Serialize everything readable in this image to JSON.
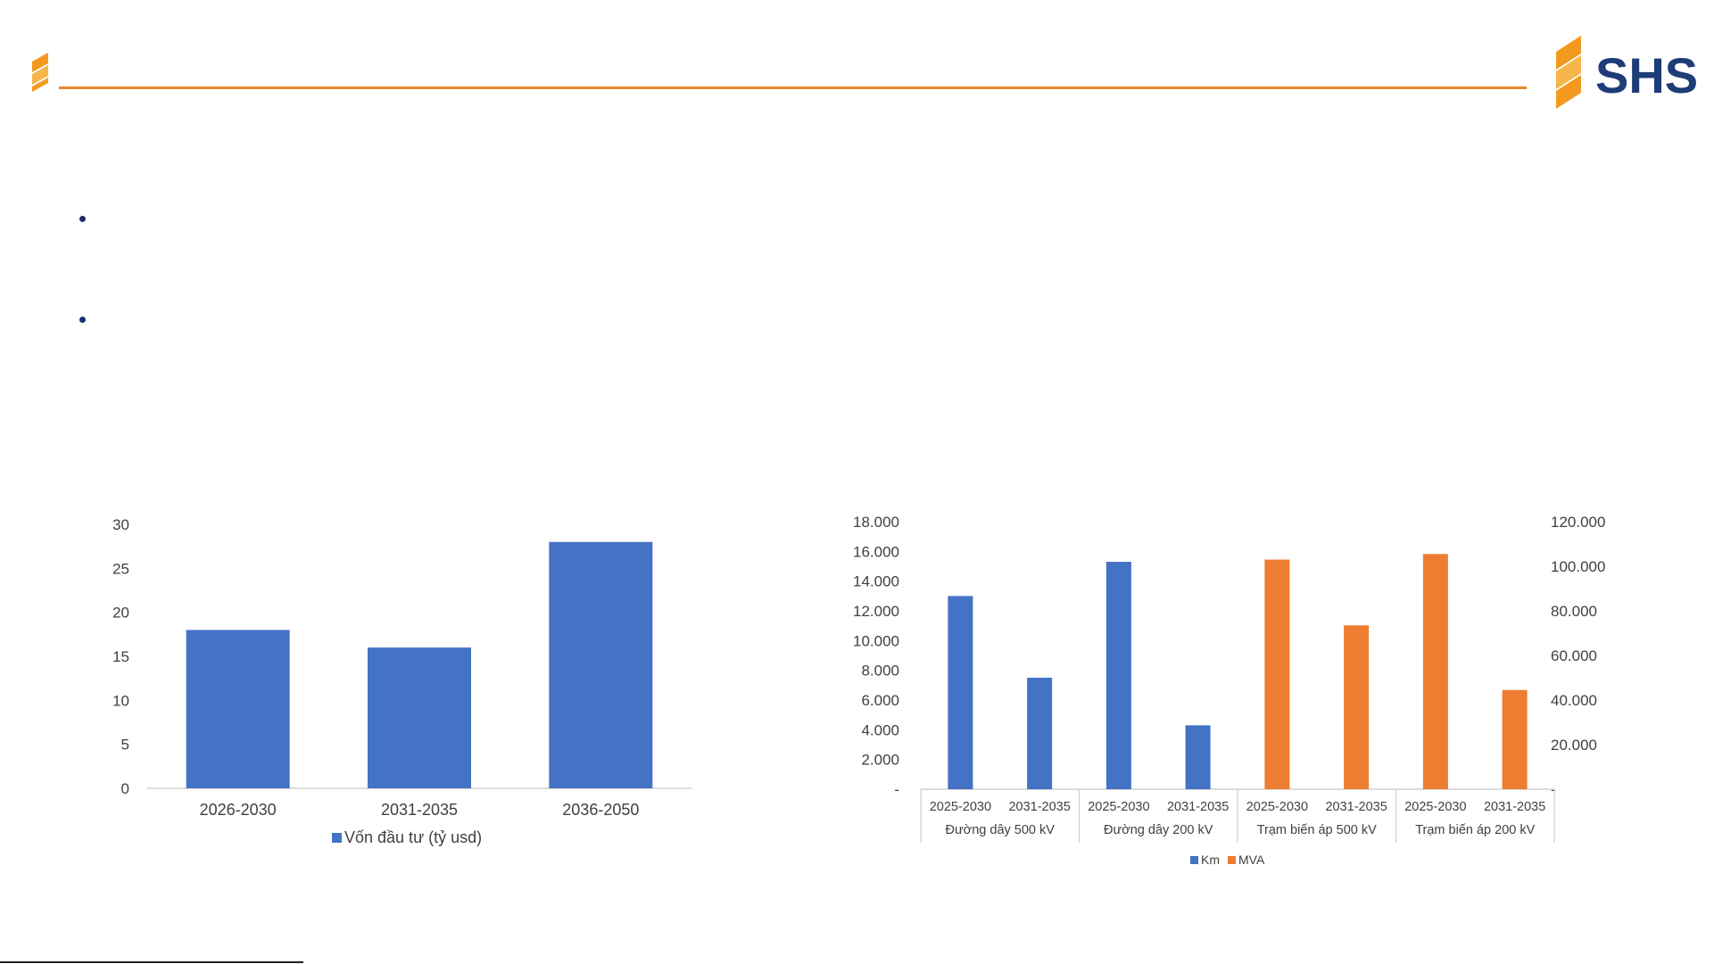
{
  "brand": {
    "name": "SHS",
    "colors": {
      "orange": "#f39a1e",
      "navy": "#1d3c78"
    }
  },
  "chart_data": [
    {
      "type": "bar",
      "categories": [
        "2026-2030",
        "2031-2035",
        "2036-2050"
      ],
      "series": [
        {
          "name": "Vốn đầu tư (tỷ usd)",
          "color": "#4472c4",
          "values": [
            18,
            16,
            28
          ]
        }
      ],
      "y_ticks": [
        "0",
        "5",
        "10",
        "15",
        "20",
        "25",
        "30"
      ],
      "ylim": [
        0,
        30
      ],
      "grid": false,
      "legend_position": "bottom"
    },
    {
      "type": "bar",
      "categories": [
        "2025-2030",
        "2031-2035",
        "2025-2030",
        "2031-2035",
        "2025-2030",
        "2031-2035",
        "2025-2030",
        "2031-2035"
      ],
      "groups": [
        {
          "label": "Đường dây 500 kV",
          "span": 2
        },
        {
          "label": "Đường dây 200 kV",
          "span": 2
        },
        {
          "label": "Trạm biến áp 500 kV",
          "span": 2
        },
        {
          "label": "Trạm biến áp 200 kV",
          "span": 2
        }
      ],
      "series": [
        {
          "name": "Km",
          "axis": "left",
          "color": "#4472c4",
          "values": [
            13000,
            7500,
            15300,
            4300,
            null,
            null,
            null,
            null
          ]
        },
        {
          "name": "MVA",
          "axis": "right",
          "color": "#ed7d31",
          "values": [
            null,
            null,
            null,
            null,
            103000,
            73500,
            105500,
            44500
          ]
        }
      ],
      "y_left_ticks": [
        "-",
        "2.000",
        "4.000",
        "6.000",
        "8.000",
        "10.000",
        "12.000",
        "14.000",
        "16.000",
        "18.000"
      ],
      "y_right_ticks": [
        "-",
        "20.000",
        "40.000",
        "60.000",
        "80.000",
        "100.000",
        "120.000"
      ],
      "ylim_left": [
        0,
        18000
      ],
      "ylim_right": [
        0,
        120000
      ],
      "grid": false,
      "legend_position": "bottom"
    }
  ]
}
